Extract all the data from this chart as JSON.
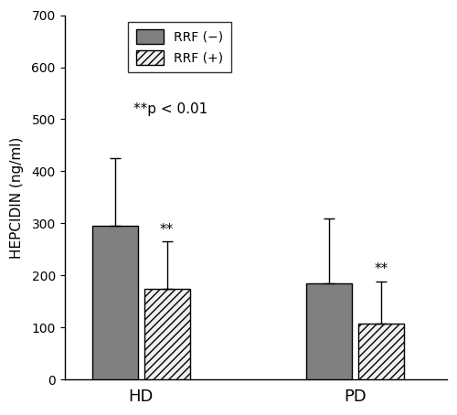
{
  "groups": [
    "HD",
    "PD"
  ],
  "bar_values": [
    [
      295,
      175
    ],
    [
      185,
      108
    ]
  ],
  "error_upper": [
    [
      130,
      90
    ],
    [
      125,
      80
    ]
  ],
  "legend_labels": [
    "RRF (−)",
    "RRF (+)"
  ],
  "ylabel": "HEPCIDIN (ng/ml)",
  "ylim": [
    0,
    700
  ],
  "yticks": [
    0,
    100,
    200,
    300,
    400,
    500,
    600,
    700
  ],
  "annotation_text": "**p < 0.01",
  "bar_width": 0.3,
  "group_positions": [
    1.0,
    2.4
  ],
  "offsets": [
    -0.17,
    0.17
  ],
  "background_color": "#ffffff",
  "bar_edge_color": "#000000",
  "bar_face_color_solid": "#808080",
  "bar_face_color_hatch": "#f0f0f0",
  "xlim": [
    0.5,
    3.0
  ]
}
